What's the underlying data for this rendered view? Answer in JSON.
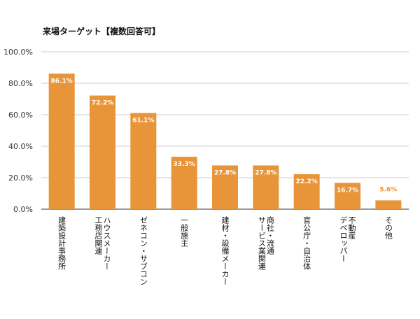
{
  "chart_data": {
    "type": "bar",
    "title": "来場ターゲット【複数回答可】",
    "categories": [
      [
        "建築設計事務所"
      ],
      [
        "ハウスメーカー",
        "工務店関連"
      ],
      [
        "ゼネコン・サブコン"
      ],
      [
        "一般施主"
      ],
      [
        "建材・設備メーカー"
      ],
      [
        "商社・流通",
        "サービス業関連"
      ],
      [
        "官公庁・自治体"
      ],
      [
        "不動産",
        "デベロッパー"
      ],
      [
        "その他"
      ]
    ],
    "values": [
      86.1,
      72.2,
      61.1,
      33.3,
      27.8,
      27.8,
      22.2,
      16.7,
      5.6
    ],
    "data_labels": [
      "86.1%",
      "72.2%",
      "61.1%",
      "33.3%",
      "27.8%",
      "27.8%",
      "22.2%",
      "16.7%",
      "5.6%"
    ],
    "ylim": [
      0,
      100
    ],
    "yticks": [
      "0.0%",
      "20.0%",
      "40.0%",
      "60.0%",
      "80.0%",
      "100.0%"
    ],
    "grid": true,
    "colors": {
      "bar": "#e8953a",
      "label_inside": "#ffffff",
      "label_outside": "#e8953a"
    }
  }
}
